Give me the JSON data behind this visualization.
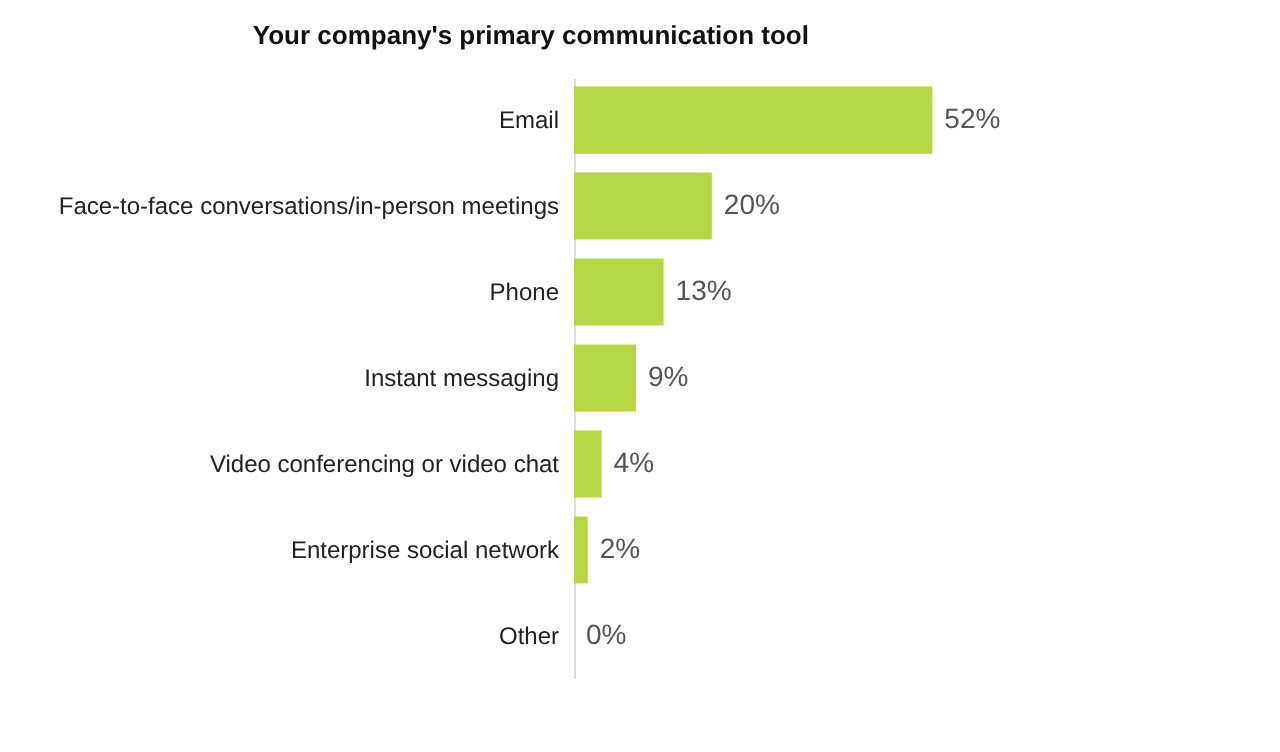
{
  "chart_data": {
    "type": "bar",
    "orientation": "horizontal",
    "title": "Your company's primary communication tool",
    "categories": [
      "Email",
      "Face-to-face conversations/in-person meetings",
      "Phone",
      "Instant messaging",
      "Video conferencing or video chat",
      "Enterprise social network",
      "Other"
    ],
    "values": [
      52,
      20,
      13,
      9,
      4,
      2,
      0
    ],
    "value_labels": [
      "52%",
      "20%",
      "13%",
      "9%",
      "4%",
      "2%",
      "0%"
    ],
    "color": "#b5d844"
  }
}
